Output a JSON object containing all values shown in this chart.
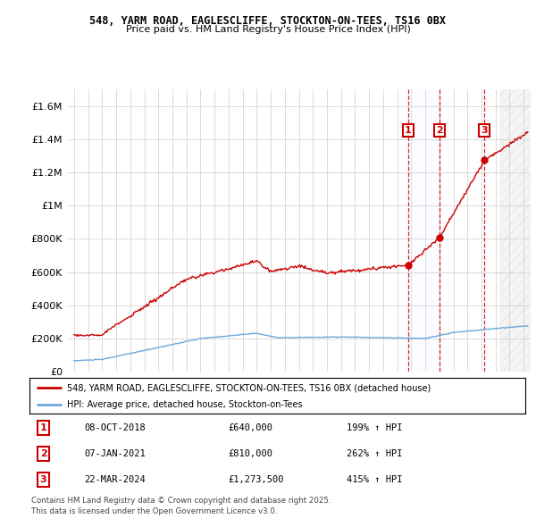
{
  "title1": "548, YARM ROAD, EAGLESCLIFFE, STOCKTON-ON-TEES, TS16 0BX",
  "title2": "Price paid vs. HM Land Registry's House Price Index (HPI)",
  "xlim": [
    1994.5,
    2027.5
  ],
  "ylim": [
    0,
    1700000
  ],
  "yticks": [
    0,
    200000,
    400000,
    600000,
    800000,
    1000000,
    1200000,
    1400000,
    1600000
  ],
  "ytick_labels": [
    "£0",
    "£200K",
    "£400K",
    "£600K",
    "£800K",
    "£1M",
    "£1.2M",
    "£1.4M",
    "£1.6M"
  ],
  "sale_dates": [
    2018.77,
    2021.02,
    2024.22
  ],
  "sale_prices": [
    640000,
    810000,
    1273500
  ],
  "sale_labels": [
    "1",
    "2",
    "3"
  ],
  "hpi_color": "#6fa8dc",
  "price_color": "#cc0000",
  "shade_color": "#ddeeff",
  "legend_label_red": "548, YARM ROAD, EAGLESCLIFFE, STOCKTON-ON-TEES, TS16 0BX (detached house)",
  "legend_label_blue": "HPI: Average price, detached house, Stockton-on-Tees",
  "table_entries": [
    {
      "label": "1",
      "date": "08-OCT-2018",
      "price": "£640,000",
      "hpi": "199% ↑ HPI"
    },
    {
      "label": "2",
      "date": "07-JAN-2021",
      "price": "£810,000",
      "hpi": "262% ↑ HPI"
    },
    {
      "label": "3",
      "date": "22-MAR-2024",
      "price": "£1,273,500",
      "hpi": "415% ↑ HPI"
    }
  ],
  "footnote": "Contains HM Land Registry data © Crown copyright and database right 2025.\nThis data is licensed under the Open Government Licence v3.0.",
  "hatch_after": 2025.25,
  "background_color": "#ffffff"
}
